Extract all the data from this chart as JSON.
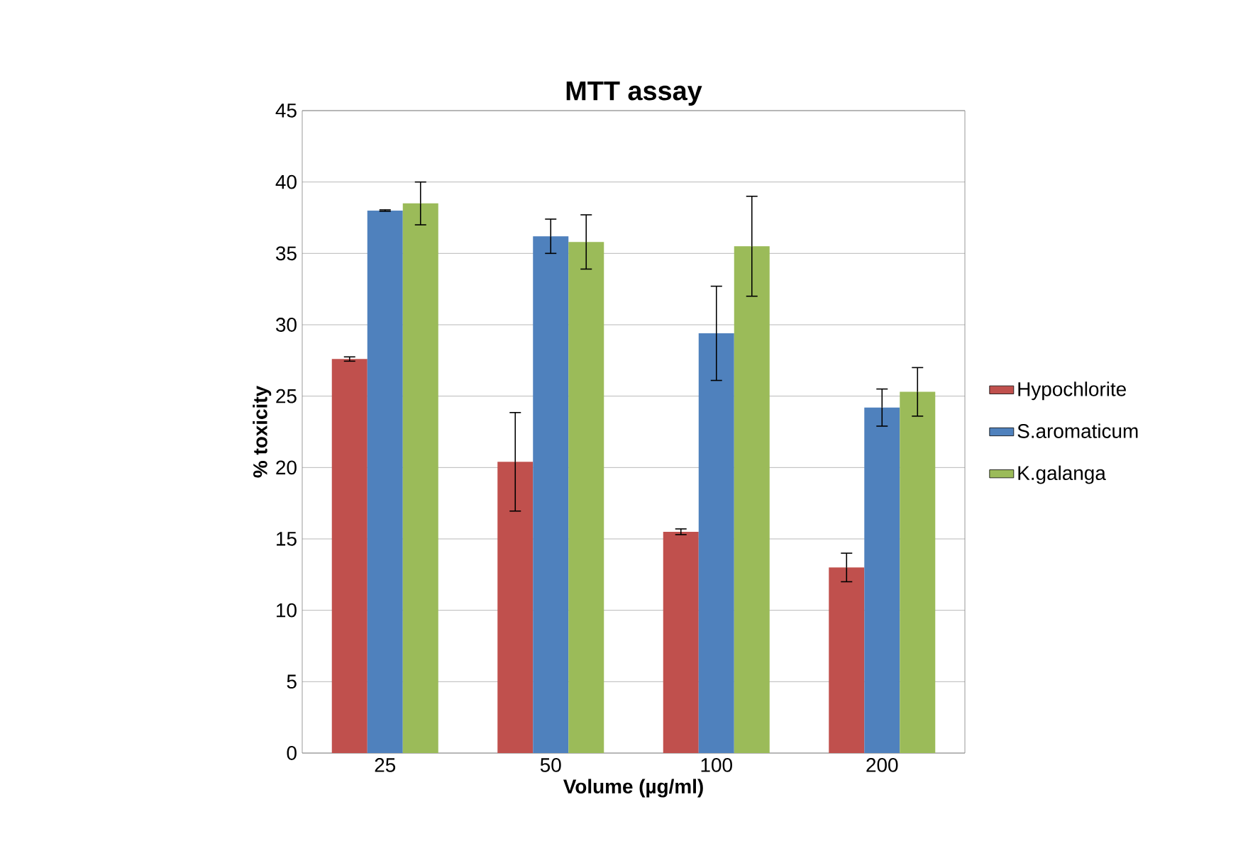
{
  "chart_data": {
    "type": "bar",
    "title": "MTT assay",
    "xlabel": "Volume (µg/ml)",
    "ylabel": "% toxicity",
    "categories": [
      "25",
      "50",
      "100",
      "200"
    ],
    "series": [
      {
        "name": "Hypochlorite",
        "color": "#c0504d",
        "values": [
          27.6,
          20.4,
          15.5,
          13.0
        ],
        "errors": [
          0.15,
          3.45,
          0.2,
          1.0
        ]
      },
      {
        "name": "S.aromaticum",
        "color": "#4f81bd",
        "values": [
          38.0,
          36.2,
          29.4,
          24.2
        ],
        "errors": [
          0.05,
          1.2,
          3.3,
          1.3
        ]
      },
      {
        "name": "K.galanga",
        "color": "#9bbb59",
        "values": [
          38.5,
          35.8,
          35.5,
          25.3
        ],
        "errors": [
          1.5,
          1.9,
          3.5,
          1.7
        ]
      }
    ],
    "ylim": [
      0,
      45
    ],
    "yticks": [
      0,
      5,
      10,
      15,
      20,
      25,
      30,
      35,
      40,
      45
    ],
    "grid": "y",
    "legend": "right"
  }
}
